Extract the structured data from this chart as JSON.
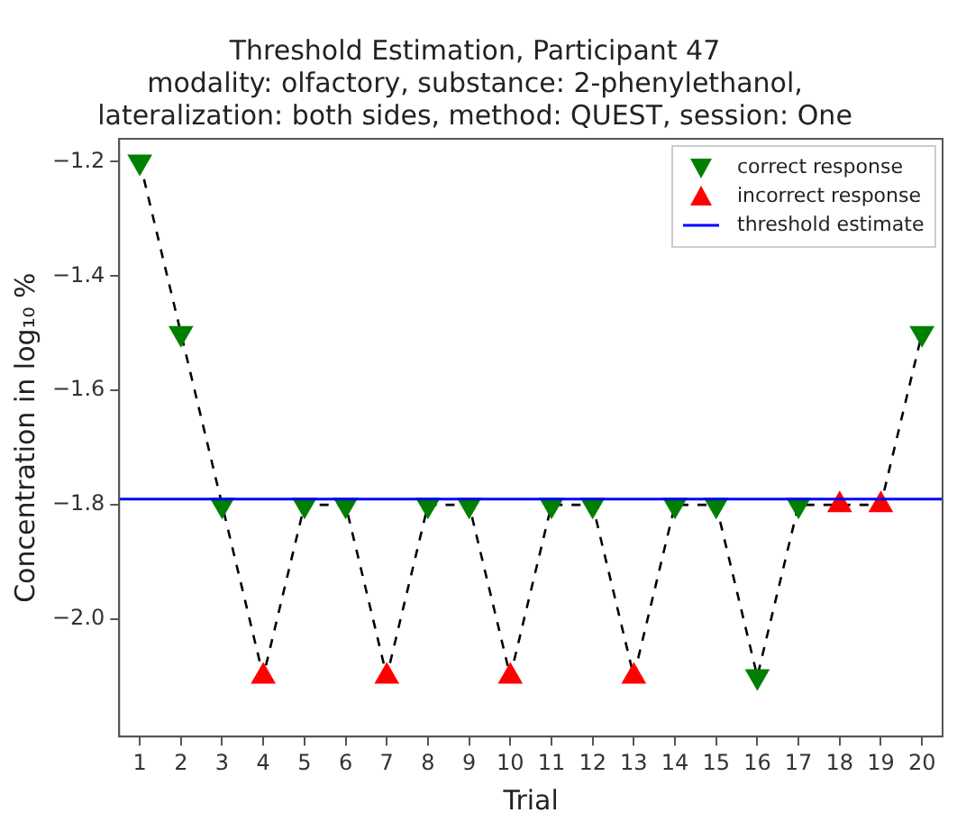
{
  "chart_data": {
    "type": "scatter",
    "title": "Threshold Estimation, Participant 47",
    "subtitle": "modality: olfactory, substance: 2-phenylethanol,\nlateralization: both sides, method: QUEST, session: One",
    "xlabel": "Trial",
    "ylabel": "Concentration in log₁₀ %",
    "series": [
      {
        "type": "line",
        "color": "#000000",
        "line_style": "dashed",
        "marker": "none",
        "x": [
          1,
          2,
          3,
          4,
          5,
          6,
          7,
          8,
          9,
          10,
          11,
          12,
          13,
          14,
          15,
          16,
          17,
          18,
          19,
          20
        ],
        "values": [
          -1.2,
          -1.5,
          -1.8,
          -2.1,
          -1.8,
          -1.8,
          -2.1,
          -1.8,
          -1.8,
          -2.1,
          -1.8,
          -1.8,
          -2.1,
          -1.8,
          -1.8,
          -2.1,
          -1.8,
          -1.8,
          -1.8,
          -1.5
        ]
      },
      {
        "name": "correct response",
        "color": "#008000",
        "marker": "triangle",
        "x": [
          1,
          2,
          3,
          5,
          6,
          8,
          9,
          11,
          12,
          14,
          15,
          16,
          17,
          20
        ],
        "values": [
          -1.2,
          -1.5,
          -1.8,
          -1.8,
          -1.8,
          -1.8,
          -1.8,
          -1.8,
          -1.8,
          -1.8,
          -1.8,
          -2.1,
          -1.8,
          -1.5
        ]
      },
      {
        "name": "incorrect response",
        "color": "#ff0000",
        "marker": "triangle",
        "x": [
          4,
          7,
          10,
          13,
          18,
          19
        ],
        "values": [
          -2.1,
          -2.1,
          -2.1,
          -2.1,
          -1.8,
          -1.8
        ]
      }
    ],
    "ref_lines": [
      {
        "axis": "y",
        "value": -1.79,
        "label": "threshold estimate",
        "color": "#0000ff"
      }
    ],
    "xlim": [
      0.5,
      20.5
    ],
    "xticks": [
      1,
      2,
      3,
      4,
      5,
      6,
      7,
      8,
      9,
      10,
      11,
      12,
      13,
      14,
      15,
      16,
      17,
      18,
      19,
      20
    ],
    "ylim": [
      -2.205,
      -1.16
    ],
    "yticks": [
      {
        "value": -2.0,
        "label": "−2.0"
      },
      {
        "value": -1.8,
        "label": "−1.8"
      },
      {
        "value": -1.6,
        "label": "−1.6"
      },
      {
        "value": -1.4,
        "label": "−1.4"
      },
      {
        "value": -1.2,
        "label": "−1.2"
      }
    ],
    "grid": false,
    "legend": "top right"
  }
}
